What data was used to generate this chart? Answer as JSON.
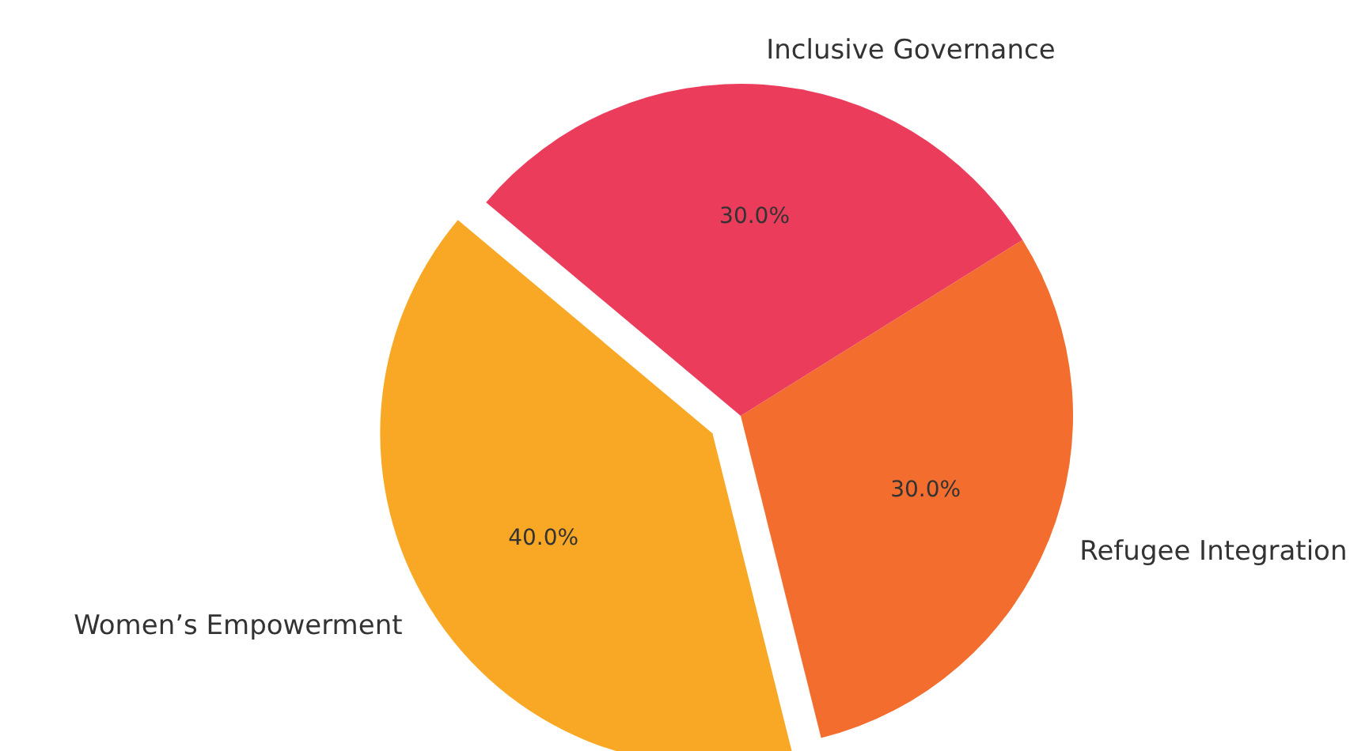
{
  "chart_data": {
    "type": "pie",
    "categories": [
      "Women’s Empowerment",
      "Refugee Integration",
      "Inclusive Governance"
    ],
    "values": [
      40,
      30,
      30
    ],
    "colors": [
      "#f9a825",
      "#f26d2e",
      "#ec3c5c"
    ],
    "value_labels": [
      "40.0%",
      "30.0%",
      "30.0%"
    ]
  }
}
